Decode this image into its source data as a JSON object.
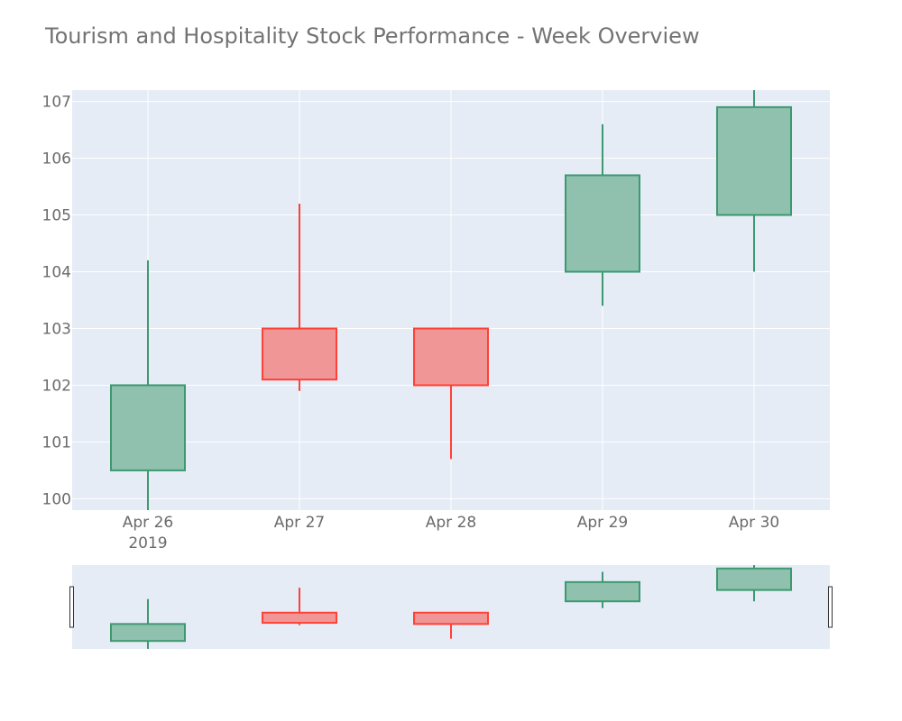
{
  "chart_data": {
    "type": "candlestick",
    "title": "Tourism and Hospitality Stock Performance - Week Overview",
    "categories": [
      "Apr 26",
      "Apr 27",
      "Apr 28",
      "Apr 29",
      "Apr 30"
    ],
    "x_year_label": "2019",
    "ohlc": [
      {
        "date": "Apr 26",
        "open": 100.5,
        "high": 104.2,
        "low": 99.8,
        "close": 102.0
      },
      {
        "date": "Apr 27",
        "open": 103.0,
        "high": 105.2,
        "low": 101.9,
        "close": 102.1
      },
      {
        "date": "Apr 28",
        "open": 103.0,
        "high": 103.0,
        "low": 100.7,
        "close": 102.0
      },
      {
        "date": "Apr 29",
        "open": 104.0,
        "high": 106.6,
        "low": 103.4,
        "close": 105.7
      },
      {
        "date": "Apr 30",
        "open": 105.0,
        "high": 107.2,
        "low": 104.0,
        "close": 106.9
      }
    ],
    "ylim": [
      99.8,
      107.2
    ],
    "yticks": [
      100,
      101,
      102,
      103,
      104,
      105,
      106,
      107
    ],
    "grid": true,
    "rangeslider": true,
    "colors": {
      "increasing": "#3d9970",
      "increasing_fill": "#8fc1ae",
      "decreasing": "#ff4136",
      "decreasing_fill": "#f19696",
      "plot_bg": "#e5ecf6",
      "grid": "#ffffff"
    }
  }
}
